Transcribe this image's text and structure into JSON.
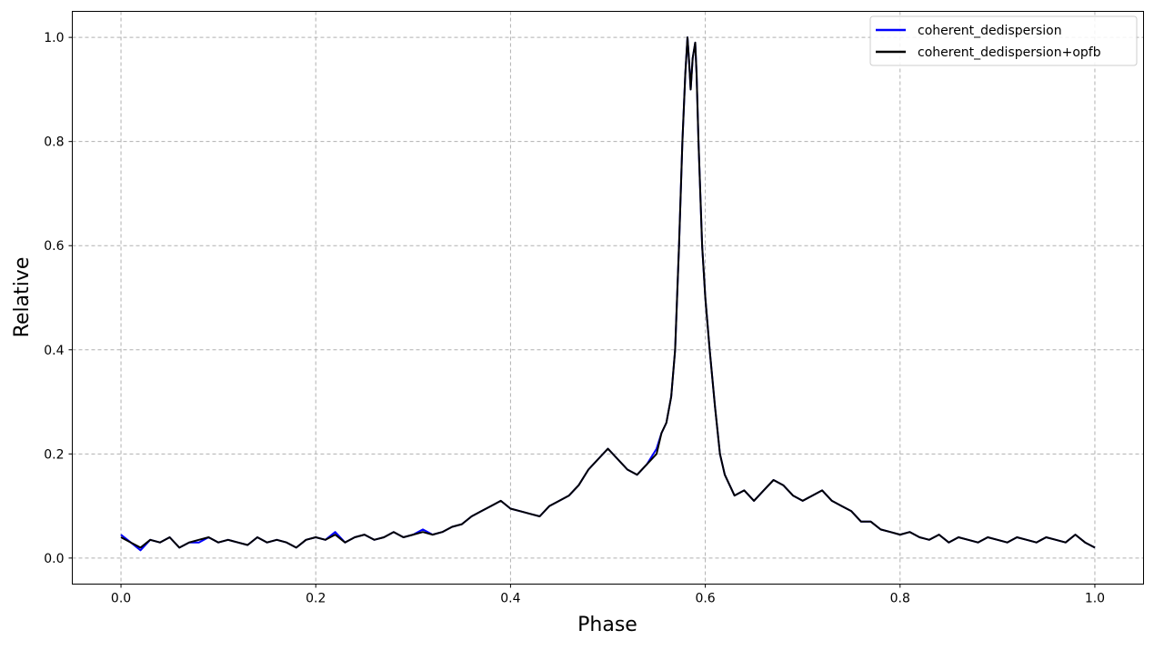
{
  "chart_data": {
    "type": "line",
    "title": "",
    "xlabel": "Phase",
    "ylabel": "Relative",
    "xlim": [
      -0.05,
      1.05
    ],
    "ylim": [
      -0.05,
      1.05
    ],
    "xticks": [
      0.0,
      0.2,
      0.4,
      0.6,
      0.8,
      1.0
    ],
    "xtick_labels": [
      "0.0",
      "0.2",
      "0.4",
      "0.6",
      "0.8",
      "1.0"
    ],
    "yticks": [
      0.0,
      0.2,
      0.4,
      0.6,
      0.8,
      1.0
    ],
    "ytick_labels": [
      "0.0",
      "0.2",
      "0.4",
      "0.6",
      "0.8",
      "1.0"
    ],
    "grid": true,
    "legend_position": "top-right",
    "x": [
      0.0,
      0.01,
      0.02,
      0.03,
      0.04,
      0.05,
      0.06,
      0.07,
      0.08,
      0.09,
      0.1,
      0.11,
      0.12,
      0.13,
      0.14,
      0.15,
      0.16,
      0.17,
      0.18,
      0.19,
      0.2,
      0.21,
      0.22,
      0.23,
      0.24,
      0.25,
      0.26,
      0.27,
      0.28,
      0.29,
      0.3,
      0.31,
      0.32,
      0.33,
      0.34,
      0.35,
      0.36,
      0.37,
      0.38,
      0.39,
      0.4,
      0.41,
      0.42,
      0.43,
      0.44,
      0.45,
      0.46,
      0.47,
      0.48,
      0.49,
      0.5,
      0.51,
      0.52,
      0.53,
      0.54,
      0.55,
      0.555,
      0.56,
      0.565,
      0.569,
      0.573,
      0.5765,
      0.5795,
      0.5817,
      0.5835,
      0.585,
      0.587,
      0.5896,
      0.591,
      0.593,
      0.5967,
      0.6,
      0.6045,
      0.61,
      0.615,
      0.62,
      0.63,
      0.64,
      0.65,
      0.66,
      0.67,
      0.68,
      0.69,
      0.7,
      0.71,
      0.72,
      0.73,
      0.74,
      0.75,
      0.76,
      0.77,
      0.78,
      0.79,
      0.8,
      0.81,
      0.82,
      0.83,
      0.84,
      0.85,
      0.86,
      0.87,
      0.88,
      0.89,
      0.9,
      0.91,
      0.92,
      0.93,
      0.94,
      0.95,
      0.96,
      0.97,
      0.98,
      0.99,
      1.0
    ],
    "series": [
      {
        "name": "coherent_dedispersion",
        "color": "#0000ff",
        "values": [
          0.045,
          0.03,
          0.015,
          0.035,
          0.03,
          0.04,
          0.02,
          0.03,
          0.03,
          0.04,
          0.03,
          0.035,
          0.03,
          0.025,
          0.04,
          0.03,
          0.035,
          0.03,
          0.02,
          0.035,
          0.04,
          0.035,
          0.05,
          0.03,
          0.04,
          0.045,
          0.035,
          0.04,
          0.05,
          0.04,
          0.045,
          0.055,
          0.045,
          0.05,
          0.06,
          0.065,
          0.08,
          0.09,
          0.1,
          0.11,
          0.095,
          0.09,
          0.085,
          0.08,
          0.1,
          0.11,
          0.12,
          0.14,
          0.17,
          0.19,
          0.21,
          0.19,
          0.17,
          0.16,
          0.18,
          0.21,
          0.24,
          0.26,
          0.31,
          0.4,
          0.6,
          0.8,
          0.93,
          1.0,
          0.95,
          0.9,
          0.96,
          0.99,
          0.93,
          0.8,
          0.6,
          0.5,
          0.4,
          0.29,
          0.2,
          0.16,
          0.12,
          0.13,
          0.11,
          0.13,
          0.15,
          0.14,
          0.12,
          0.11,
          0.12,
          0.13,
          0.11,
          0.1,
          0.09,
          0.07,
          0.07,
          0.055,
          0.05,
          0.045,
          0.05,
          0.04,
          0.035,
          0.045,
          0.03,
          0.04,
          0.035,
          0.03,
          0.04,
          0.035,
          0.03,
          0.04,
          0.035,
          0.03,
          0.04,
          0.035,
          0.03,
          0.045,
          0.03,
          0.02
        ]
      },
      {
        "name": "coherent_dedispersion+opfb",
        "color": "#000000",
        "values": [
          0.04,
          0.03,
          0.02,
          0.035,
          0.03,
          0.04,
          0.02,
          0.03,
          0.035,
          0.04,
          0.03,
          0.035,
          0.03,
          0.025,
          0.04,
          0.03,
          0.035,
          0.03,
          0.02,
          0.035,
          0.04,
          0.035,
          0.045,
          0.03,
          0.04,
          0.045,
          0.035,
          0.04,
          0.05,
          0.04,
          0.045,
          0.05,
          0.045,
          0.05,
          0.06,
          0.065,
          0.08,
          0.09,
          0.1,
          0.11,
          0.095,
          0.09,
          0.085,
          0.08,
          0.1,
          0.11,
          0.12,
          0.14,
          0.17,
          0.19,
          0.21,
          0.19,
          0.17,
          0.16,
          0.18,
          0.2,
          0.24,
          0.26,
          0.31,
          0.4,
          0.6,
          0.8,
          0.93,
          1.0,
          0.95,
          0.9,
          0.96,
          0.99,
          0.93,
          0.8,
          0.6,
          0.5,
          0.4,
          0.29,
          0.2,
          0.16,
          0.12,
          0.13,
          0.11,
          0.13,
          0.15,
          0.14,
          0.12,
          0.11,
          0.12,
          0.13,
          0.11,
          0.1,
          0.09,
          0.07,
          0.07,
          0.055,
          0.05,
          0.045,
          0.05,
          0.04,
          0.035,
          0.045,
          0.03,
          0.04,
          0.035,
          0.03,
          0.04,
          0.035,
          0.03,
          0.04,
          0.035,
          0.03,
          0.04,
          0.035,
          0.03,
          0.045,
          0.03,
          0.02
        ]
      }
    ]
  }
}
